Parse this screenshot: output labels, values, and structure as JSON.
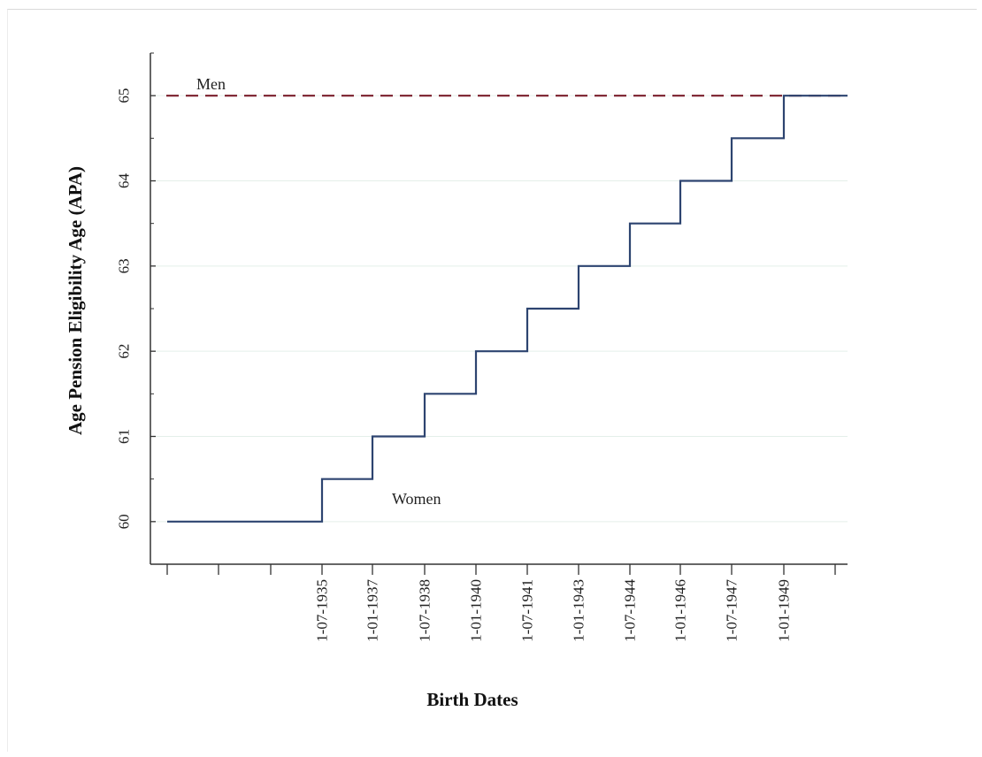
{
  "chart_data": {
    "type": "line",
    "xlabel": "Birth Dates",
    "ylabel": "Age Pension Eligibility Age (APA)",
    "ylim": [
      59.5,
      65.5
    ],
    "yticks": [
      "60",
      "61",
      "62",
      "63",
      "64",
      "65"
    ],
    "grid": "horizontal",
    "x_tick_labels": [
      "1-07-1935",
      "1-01-1937",
      "1-07-1938",
      "1-01-1940",
      "1-07-1941",
      "1-01-1943",
      "1-07-1944",
      "1-01-1946",
      "1-07-1947",
      "1-01-1949"
    ],
    "series": [
      {
        "name": "Men",
        "style": "dashed",
        "color": "#7a1f2b",
        "points": [
          [
            "1-07-1935",
            65
          ],
          [
            "1-01-1949",
            65
          ]
        ]
      },
      {
        "name": "Women",
        "style": "step",
        "color": "#2d4470",
        "points": [
          [
            "before 1-07-1935",
            60
          ],
          [
            "1-07-1935",
            60.5
          ],
          [
            "1-01-1937",
            61
          ],
          [
            "1-07-1938",
            61.5
          ],
          [
            "1-01-1940",
            62
          ],
          [
            "1-07-1941",
            62.5
          ],
          [
            "1-01-1943",
            63
          ],
          [
            "1-07-1944",
            63.5
          ],
          [
            "1-01-1946",
            64
          ],
          [
            "1-07-1947",
            64.5
          ],
          [
            "1-01-1949",
            65
          ]
        ]
      }
    ]
  }
}
